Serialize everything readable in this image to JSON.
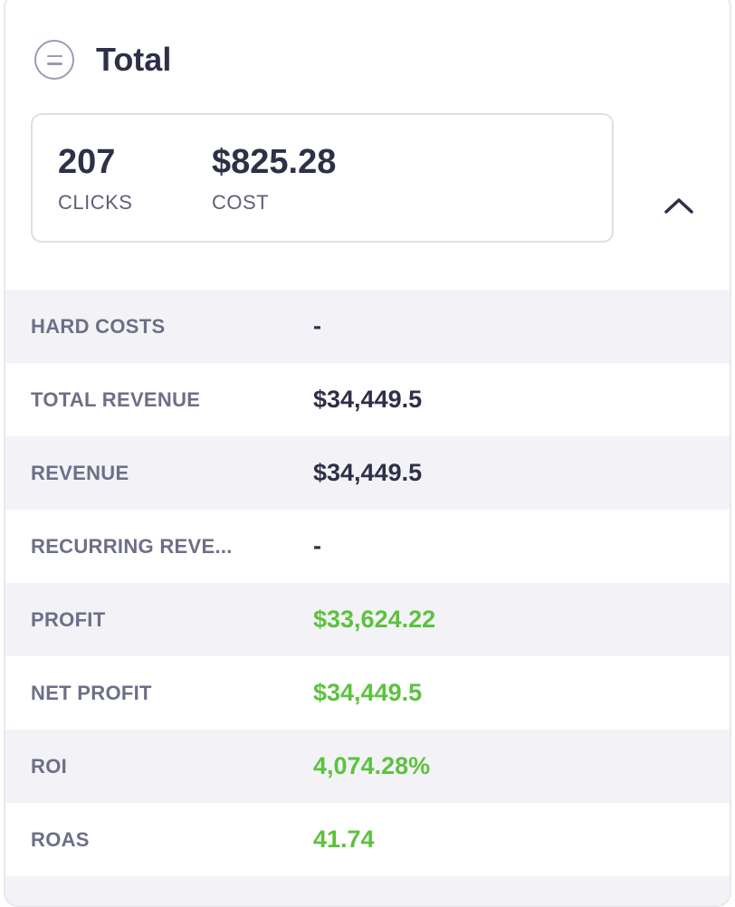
{
  "header": {
    "title": "Total",
    "menu_icon": "menu-circle-icon"
  },
  "summary": {
    "clicks": {
      "value": "207",
      "label": "CLICKS"
    },
    "cost": {
      "value": "$825.28",
      "label": "COST"
    },
    "toggle_icon": "chevron-up-icon"
  },
  "metrics": [
    {
      "label": "HARD COSTS",
      "value": "-",
      "positive": false
    },
    {
      "label": "TOTAL REVENUE",
      "value": "$34,449.5",
      "positive": false
    },
    {
      "label": "REVENUE",
      "value": "$34,449.5",
      "positive": false
    },
    {
      "label": "RECURRING REVE...",
      "value": "-",
      "positive": false
    },
    {
      "label": "PROFIT",
      "value": "$33,624.22",
      "positive": true
    },
    {
      "label": "NET PROFIT",
      "value": "$34,449.5",
      "positive": true
    },
    {
      "label": "ROI",
      "value": "4,074.28%",
      "positive": true
    },
    {
      "label": "ROAS",
      "value": "41.74",
      "positive": true
    }
  ],
  "colors": {
    "positive": "#5cc23e",
    "text": "#2e3047",
    "muted": "#6d6f88",
    "stripe": "#f3f3f7"
  }
}
